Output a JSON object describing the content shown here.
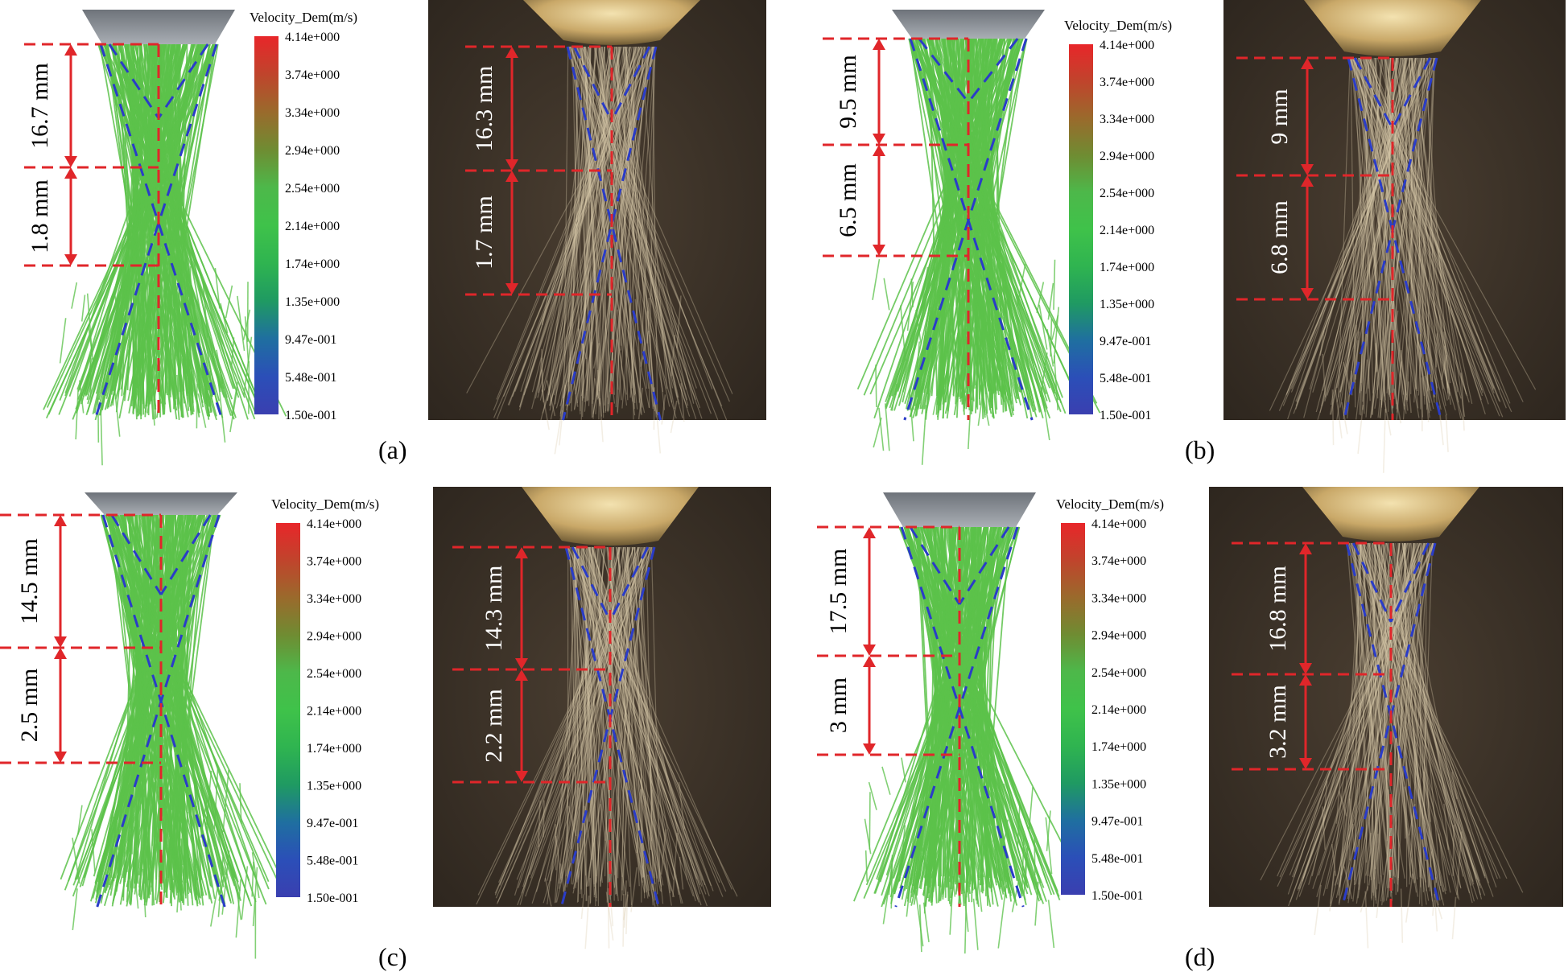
{
  "colorbar": {
    "title": "Velocity_Dem(m/s)",
    "ticks": [
      "4.14e+000",
      "3.74e+000",
      "3.34e+000",
      "2.94e+000",
      "2.54e+000",
      "2.14e+000",
      "1.74e+000",
      "1.35e+000",
      "9.47e-001",
      "5.48e-001",
      "1.50e-001"
    ],
    "colors": [
      "#e8262a",
      "#c0442c",
      "#9a6a2c",
      "#6f8c32",
      "#4db84a",
      "#3fc24a",
      "#2fb450",
      "#1f9a62",
      "#1f6fa0",
      "#2b4fb8",
      "#3a3fb0"
    ]
  },
  "colors": {
    "dimension": "#e0262a",
    "cone": "#2a3cc8",
    "simulation_stream": "#5cc24a",
    "photo_background": "#3b3128",
    "nozzle_sim": "#8a8f96",
    "nozzle_photo": "#c9a868"
  },
  "panels": [
    {
      "label": "(a)",
      "simulation": {
        "upper": "16.7 mm",
        "lower": "1.8 mm"
      },
      "experiment": {
        "upper": "16.3 mm",
        "lower": "1.7 mm"
      }
    },
    {
      "label": "(b)",
      "simulation": {
        "upper": "9.5 mm",
        "lower": "6.5 mm"
      },
      "experiment": {
        "upper": "9 mm",
        "lower": "6.8 mm"
      }
    },
    {
      "label": "(c)",
      "simulation": {
        "upper": "14.5 mm",
        "lower": "2.5 mm"
      },
      "experiment": {
        "upper": "14.3 mm",
        "lower": "2.2 mm"
      }
    },
    {
      "label": "(d)",
      "simulation": {
        "upper": "17.5 mm",
        "lower": "3 mm"
      },
      "experiment": {
        "upper": "16.8 mm",
        "lower": "3.2 mm"
      }
    }
  ]
}
